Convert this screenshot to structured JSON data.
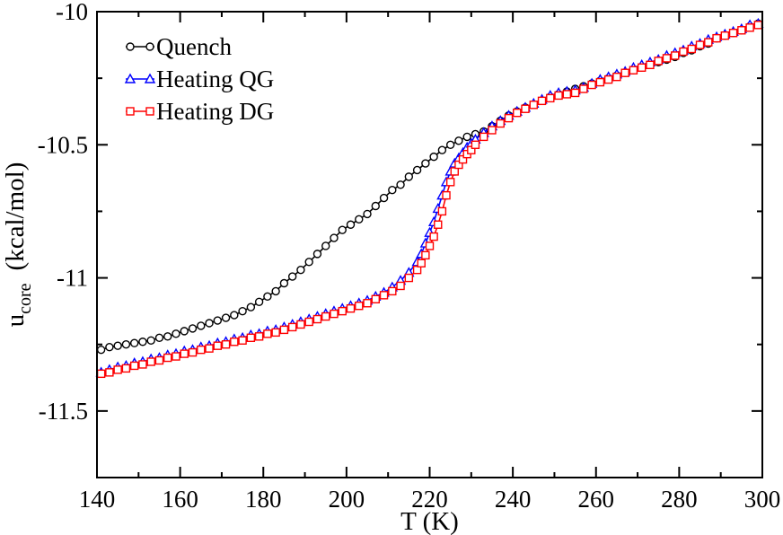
{
  "chart_data": {
    "type": "line",
    "xlabel": "T  (K)",
    "ylabel": {
      "main": "u",
      "subscript": "core",
      "unit": "(kcal/mol)"
    },
    "xlim": [
      140,
      300
    ],
    "ylim": [
      -11.75,
      -10
    ],
    "xticks": [
      140,
      160,
      180,
      200,
      220,
      240,
      260,
      280,
      300
    ],
    "yticks": [
      -10,
      -10.5,
      -11,
      -11.5
    ],
    "ytick_labels": [
      "-10",
      "-10.5",
      "-11",
      "-11.5"
    ],
    "legend": {
      "position": "top-left"
    },
    "grid": false,
    "series": [
      {
        "name": "Quench",
        "color": "#000000",
        "marker": "circle",
        "x": [
          141,
          143,
          145,
          147,
          149,
          151,
          153,
          155,
          157,
          159,
          161,
          163,
          165,
          167,
          169,
          171,
          173,
          175,
          177,
          179,
          181,
          183,
          185,
          187,
          189,
          191,
          193,
          195,
          197,
          199,
          201,
          203,
          205,
          207,
          209,
          211,
          213,
          215,
          217,
          219,
          221,
          223,
          225,
          227,
          229,
          231,
          233,
          235,
          237,
          239,
          241,
          243,
          245,
          247,
          249,
          251,
          253,
          255,
          257,
          259,
          261,
          263,
          265,
          267,
          269,
          271,
          273,
          275,
          277,
          279,
          281,
          283,
          285,
          287,
          289,
          291,
          293,
          295,
          297,
          299
        ],
        "y": [
          -11.27,
          -11.26,
          -11.255,
          -11.25,
          -11.245,
          -11.24,
          -11.235,
          -11.225,
          -11.22,
          -11.21,
          -11.2,
          -11.19,
          -11.18,
          -11.17,
          -11.16,
          -11.15,
          -11.14,
          -11.125,
          -11.11,
          -11.09,
          -11.07,
          -11.05,
          -11.02,
          -10.995,
          -10.97,
          -10.94,
          -10.91,
          -10.88,
          -10.85,
          -10.82,
          -10.8,
          -10.78,
          -10.76,
          -10.73,
          -10.7,
          -10.67,
          -10.65,
          -10.62,
          -10.595,
          -10.57,
          -10.545,
          -10.52,
          -10.5,
          -10.485,
          -10.47,
          -10.46,
          -10.45,
          -10.43,
          -10.41,
          -10.39,
          -10.375,
          -10.36,
          -10.35,
          -10.335,
          -10.32,
          -10.31,
          -10.3,
          -10.29,
          -10.28,
          -10.27,
          -10.26,
          -10.25,
          -10.24,
          -10.23,
          -10.22,
          -10.21,
          -10.2,
          -10.19,
          -10.18,
          -10.17,
          -10.155,
          -10.145,
          -10.13,
          -10.12,
          -10.1,
          -10.09,
          -10.08,
          -10.07,
          -10.055,
          -10.045
        ]
      },
      {
        "name": "Heating QG",
        "color": "#0000ff",
        "marker": "triangle",
        "x": [
          141,
          143,
          145,
          147,
          149,
          151,
          153,
          155,
          157,
          159,
          161,
          163,
          165,
          167,
          169,
          171,
          173,
          175,
          177,
          179,
          181,
          183,
          185,
          187,
          189,
          191,
          193,
          195,
          197,
          199,
          201,
          203,
          205,
          207,
          209,
          211,
          213,
          215,
          217,
          218,
          219,
          220,
          221,
          222,
          223,
          224,
          225,
          226,
          227,
          228,
          229,
          230,
          231,
          233,
          235,
          237,
          239,
          241,
          243,
          245,
          247,
          249,
          251,
          253,
          255,
          257,
          259,
          261,
          263,
          265,
          267,
          269,
          271,
          273,
          275,
          277,
          279,
          281,
          283,
          285,
          287,
          289,
          291,
          293,
          295,
          297,
          299
        ],
        "y": [
          -11.355,
          -11.345,
          -11.335,
          -11.33,
          -11.32,
          -11.315,
          -11.305,
          -11.3,
          -11.29,
          -11.285,
          -11.275,
          -11.27,
          -11.26,
          -11.255,
          -11.245,
          -11.24,
          -11.23,
          -11.225,
          -11.215,
          -11.21,
          -11.2,
          -11.195,
          -11.185,
          -11.175,
          -11.165,
          -11.155,
          -11.145,
          -11.135,
          -11.125,
          -11.115,
          -11.105,
          -11.095,
          -11.085,
          -11.07,
          -11.055,
          -11.035,
          -11.01,
          -10.98,
          -10.94,
          -10.91,
          -10.87,
          -10.83,
          -10.79,
          -10.74,
          -10.69,
          -10.64,
          -10.6,
          -10.57,
          -10.55,
          -10.53,
          -10.51,
          -10.495,
          -10.48,
          -10.455,
          -10.43,
          -10.41,
          -10.39,
          -10.375,
          -10.36,
          -10.345,
          -10.33,
          -10.315,
          -10.305,
          -10.3,
          -10.295,
          -10.285,
          -10.27,
          -10.255,
          -10.245,
          -10.235,
          -10.225,
          -10.21,
          -10.2,
          -10.19,
          -10.18,
          -10.165,
          -10.155,
          -10.145,
          -10.13,
          -10.12,
          -10.105,
          -10.095,
          -10.085,
          -10.075,
          -10.065,
          -10.05,
          -10.045
        ]
      },
      {
        "name": "Heating DG",
        "color": "#ff0000",
        "marker": "square",
        "x": [
          141,
          143,
          145,
          147,
          149,
          151,
          153,
          155,
          157,
          159,
          161,
          163,
          165,
          167,
          169,
          171,
          173,
          175,
          177,
          179,
          181,
          183,
          185,
          187,
          189,
          191,
          193,
          195,
          197,
          199,
          201,
          203,
          205,
          207,
          209,
          211,
          213,
          215,
          217,
          218,
          219,
          220,
          221,
          222,
          223,
          224,
          225,
          226,
          227,
          228,
          229,
          230,
          231,
          233,
          235,
          237,
          239,
          241,
          243,
          245,
          247,
          249,
          251,
          253,
          255,
          257,
          259,
          261,
          263,
          265,
          267,
          269,
          271,
          273,
          275,
          277,
          279,
          281,
          283,
          285,
          287,
          289,
          291,
          293,
          295,
          297,
          299
        ],
        "y": [
          -11.36,
          -11.355,
          -11.345,
          -11.34,
          -11.33,
          -11.325,
          -11.315,
          -11.31,
          -11.3,
          -11.295,
          -11.285,
          -11.28,
          -11.27,
          -11.265,
          -11.255,
          -11.25,
          -11.24,
          -11.235,
          -11.225,
          -11.22,
          -11.21,
          -11.205,
          -11.195,
          -11.185,
          -11.175,
          -11.165,
          -11.155,
          -11.145,
          -11.135,
          -11.125,
          -11.115,
          -11.105,
          -11.095,
          -11.08,
          -11.065,
          -11.05,
          -11.03,
          -11.0,
          -10.97,
          -10.945,
          -10.915,
          -10.88,
          -10.845,
          -10.8,
          -10.75,
          -10.69,
          -10.64,
          -10.6,
          -10.575,
          -10.555,
          -10.535,
          -10.52,
          -10.5,
          -10.47,
          -10.445,
          -10.42,
          -10.4,
          -10.38,
          -10.365,
          -10.35,
          -10.335,
          -10.325,
          -10.315,
          -10.31,
          -10.305,
          -10.29,
          -10.275,
          -10.265,
          -10.255,
          -10.245,
          -10.23,
          -10.22,
          -10.21,
          -10.2,
          -10.185,
          -10.175,
          -10.165,
          -10.15,
          -10.14,
          -10.125,
          -10.115,
          -10.1,
          -10.09,
          -10.08,
          -10.07,
          -10.06,
          -10.05
        ]
      }
    ]
  }
}
